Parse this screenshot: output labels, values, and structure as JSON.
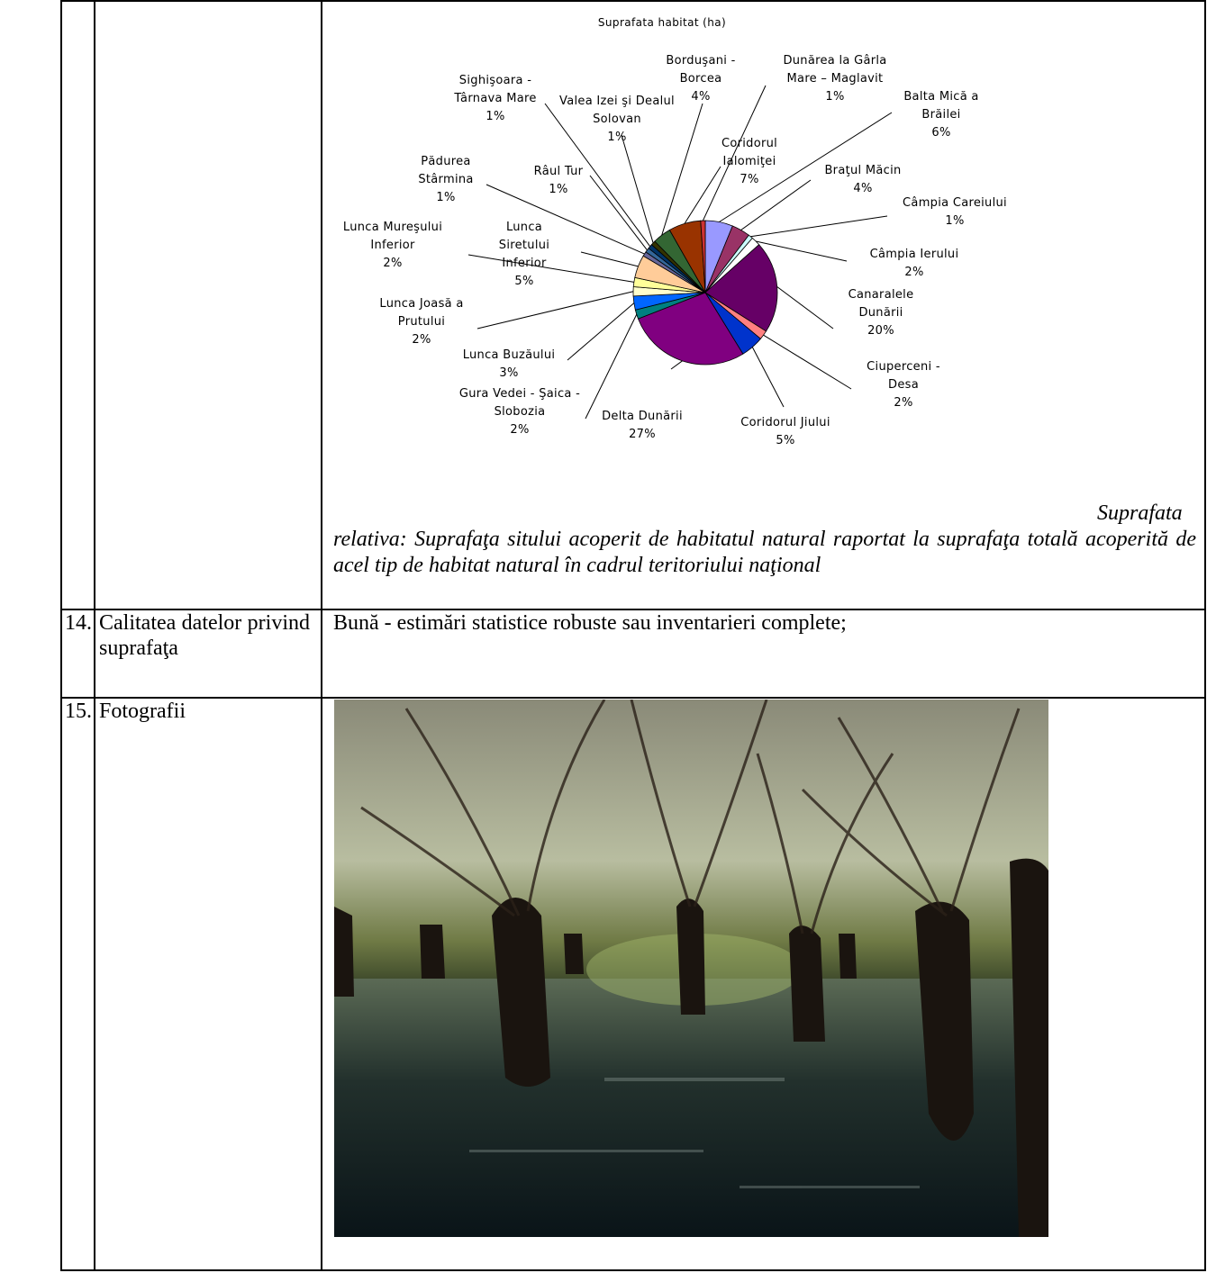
{
  "table": {
    "rows": [
      {
        "chart": {
          "type": "pie",
          "title": "Suprafata habitat (ha)",
          "categories": [
            "Balta Mică a Brăilei",
            "Braţul Măcin",
            "Câmpia Careiului",
            "Câmpia Ierului",
            "Canaralele Dunării",
            "Ciuperceni - Desa",
            "Coridorul Jiului",
            "Delta Dunării",
            "Gura Vedei - Şaica - Slobozia",
            "Lunca Buzăului",
            "Lunca Joasă a Prutului",
            "Lunca Mureşului Inferior",
            "Lunca Siretului Inferior",
            "Pădurea Stârmina",
            "Râul Tur",
            "Sighişoara - Târnava Mare",
            "Valea Izei şi Dealul Solovan",
            "Borduşani - Borcea",
            "Coridorul Ialomiţei",
            "Dunărea la Gârla Mare – Maglavit"
          ],
          "values": [
            6,
            4,
            1,
            2,
            20,
            2,
            5,
            27,
            2,
            3,
            2,
            2,
            5,
            1,
            1,
            1,
            1,
            4,
            7,
            1
          ],
          "value_labels": [
            "6%",
            "4%",
            "1%",
            "2%",
            "20%",
            "2%",
            "5%",
            "27%",
            "2%",
            "3%",
            "2%",
            "2%",
            "5%",
            "1%",
            "1%",
            "1%",
            "1%",
            "4%",
            "7%",
            "1%"
          ],
          "colors": [
            "#9999ff",
            "#993366",
            "#ccffff",
            "#ffffff",
            "#660066",
            "#ff8080",
            "#0033cc",
            "#800080",
            "#008080",
            "#0066ff",
            "#ffffcc",
            "#ffff99",
            "#ffcc99",
            "#666699",
            "#336699",
            "#003366",
            "#333300",
            "#336633",
            "#993300",
            "#cc3333"
          ]
        },
        "note": "Suprafata relativa: Suprafaţa sitului acoperit de habitatul natural raportat la suprafaţa totală acoperită de acel tip de habitat natural în cadrul teritoriului naţional"
      },
      {
        "number": "14.",
        "label": "Calitatea datelor privind suprafaţa",
        "value": "Bună - estimări statistice robuste sau inventarieri complete;"
      },
      {
        "number": "15.",
        "label": "Fotografii"
      }
    ]
  }
}
